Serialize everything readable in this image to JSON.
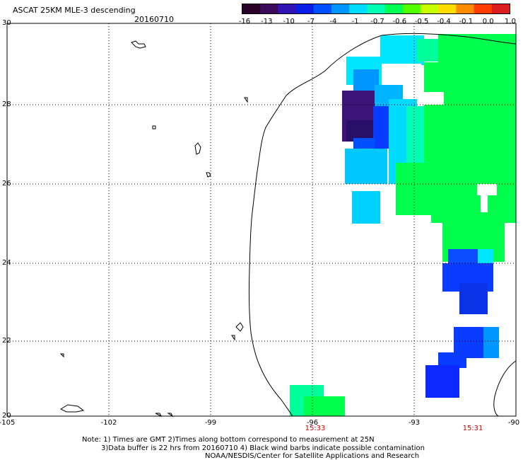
{
  "header": {
    "title": "ASCAT 25KM MLE-3 descending",
    "date": "20160710"
  },
  "colorbar": {
    "labels": [
      "-16",
      "-13",
      "-10",
      "-7",
      "-4",
      "-1",
      "-0.7",
      "-0.6",
      "-0.5",
      "-0.4",
      "-0.1",
      "0.0",
      "1.0"
    ],
    "colors": [
      "#280028",
      "#3c0a5a",
      "#3214b4",
      "#0a1ee6",
      "#0050ff",
      "#0096ff",
      "#00dcff",
      "#00ffb4",
      "#00ff50",
      "#50ff00",
      "#c8ff00",
      "#ffdc00",
      "#ff8c00",
      "#ff3c00",
      "#dc1e1e"
    ]
  },
  "axes": {
    "y_labels": [
      "30",
      "28",
      "26",
      "24",
      "22",
      "20"
    ],
    "x_labels": [
      "-105",
      "-102",
      "-99",
      "-96",
      "-93",
      "-90"
    ]
  },
  "times": [
    "15:33",
    "15:31"
  ],
  "notes": {
    "line1": "Note: 1) Times are GMT 2)Times along bottom correspond to measurement at 25N",
    "line2": "3)Data buffer is 22 hrs from 20160710 4) Black wind barbs indicate possible contamination",
    "line3": "NOAA/NESDIS/Center for Satellite Applications and Research"
  },
  "style": {
    "cyan": "#00e6ff",
    "green": "#00ff4c",
    "blue": "#0a3cff",
    "dark_purple": "#3c1478",
    "time_color": "#cc0000"
  }
}
